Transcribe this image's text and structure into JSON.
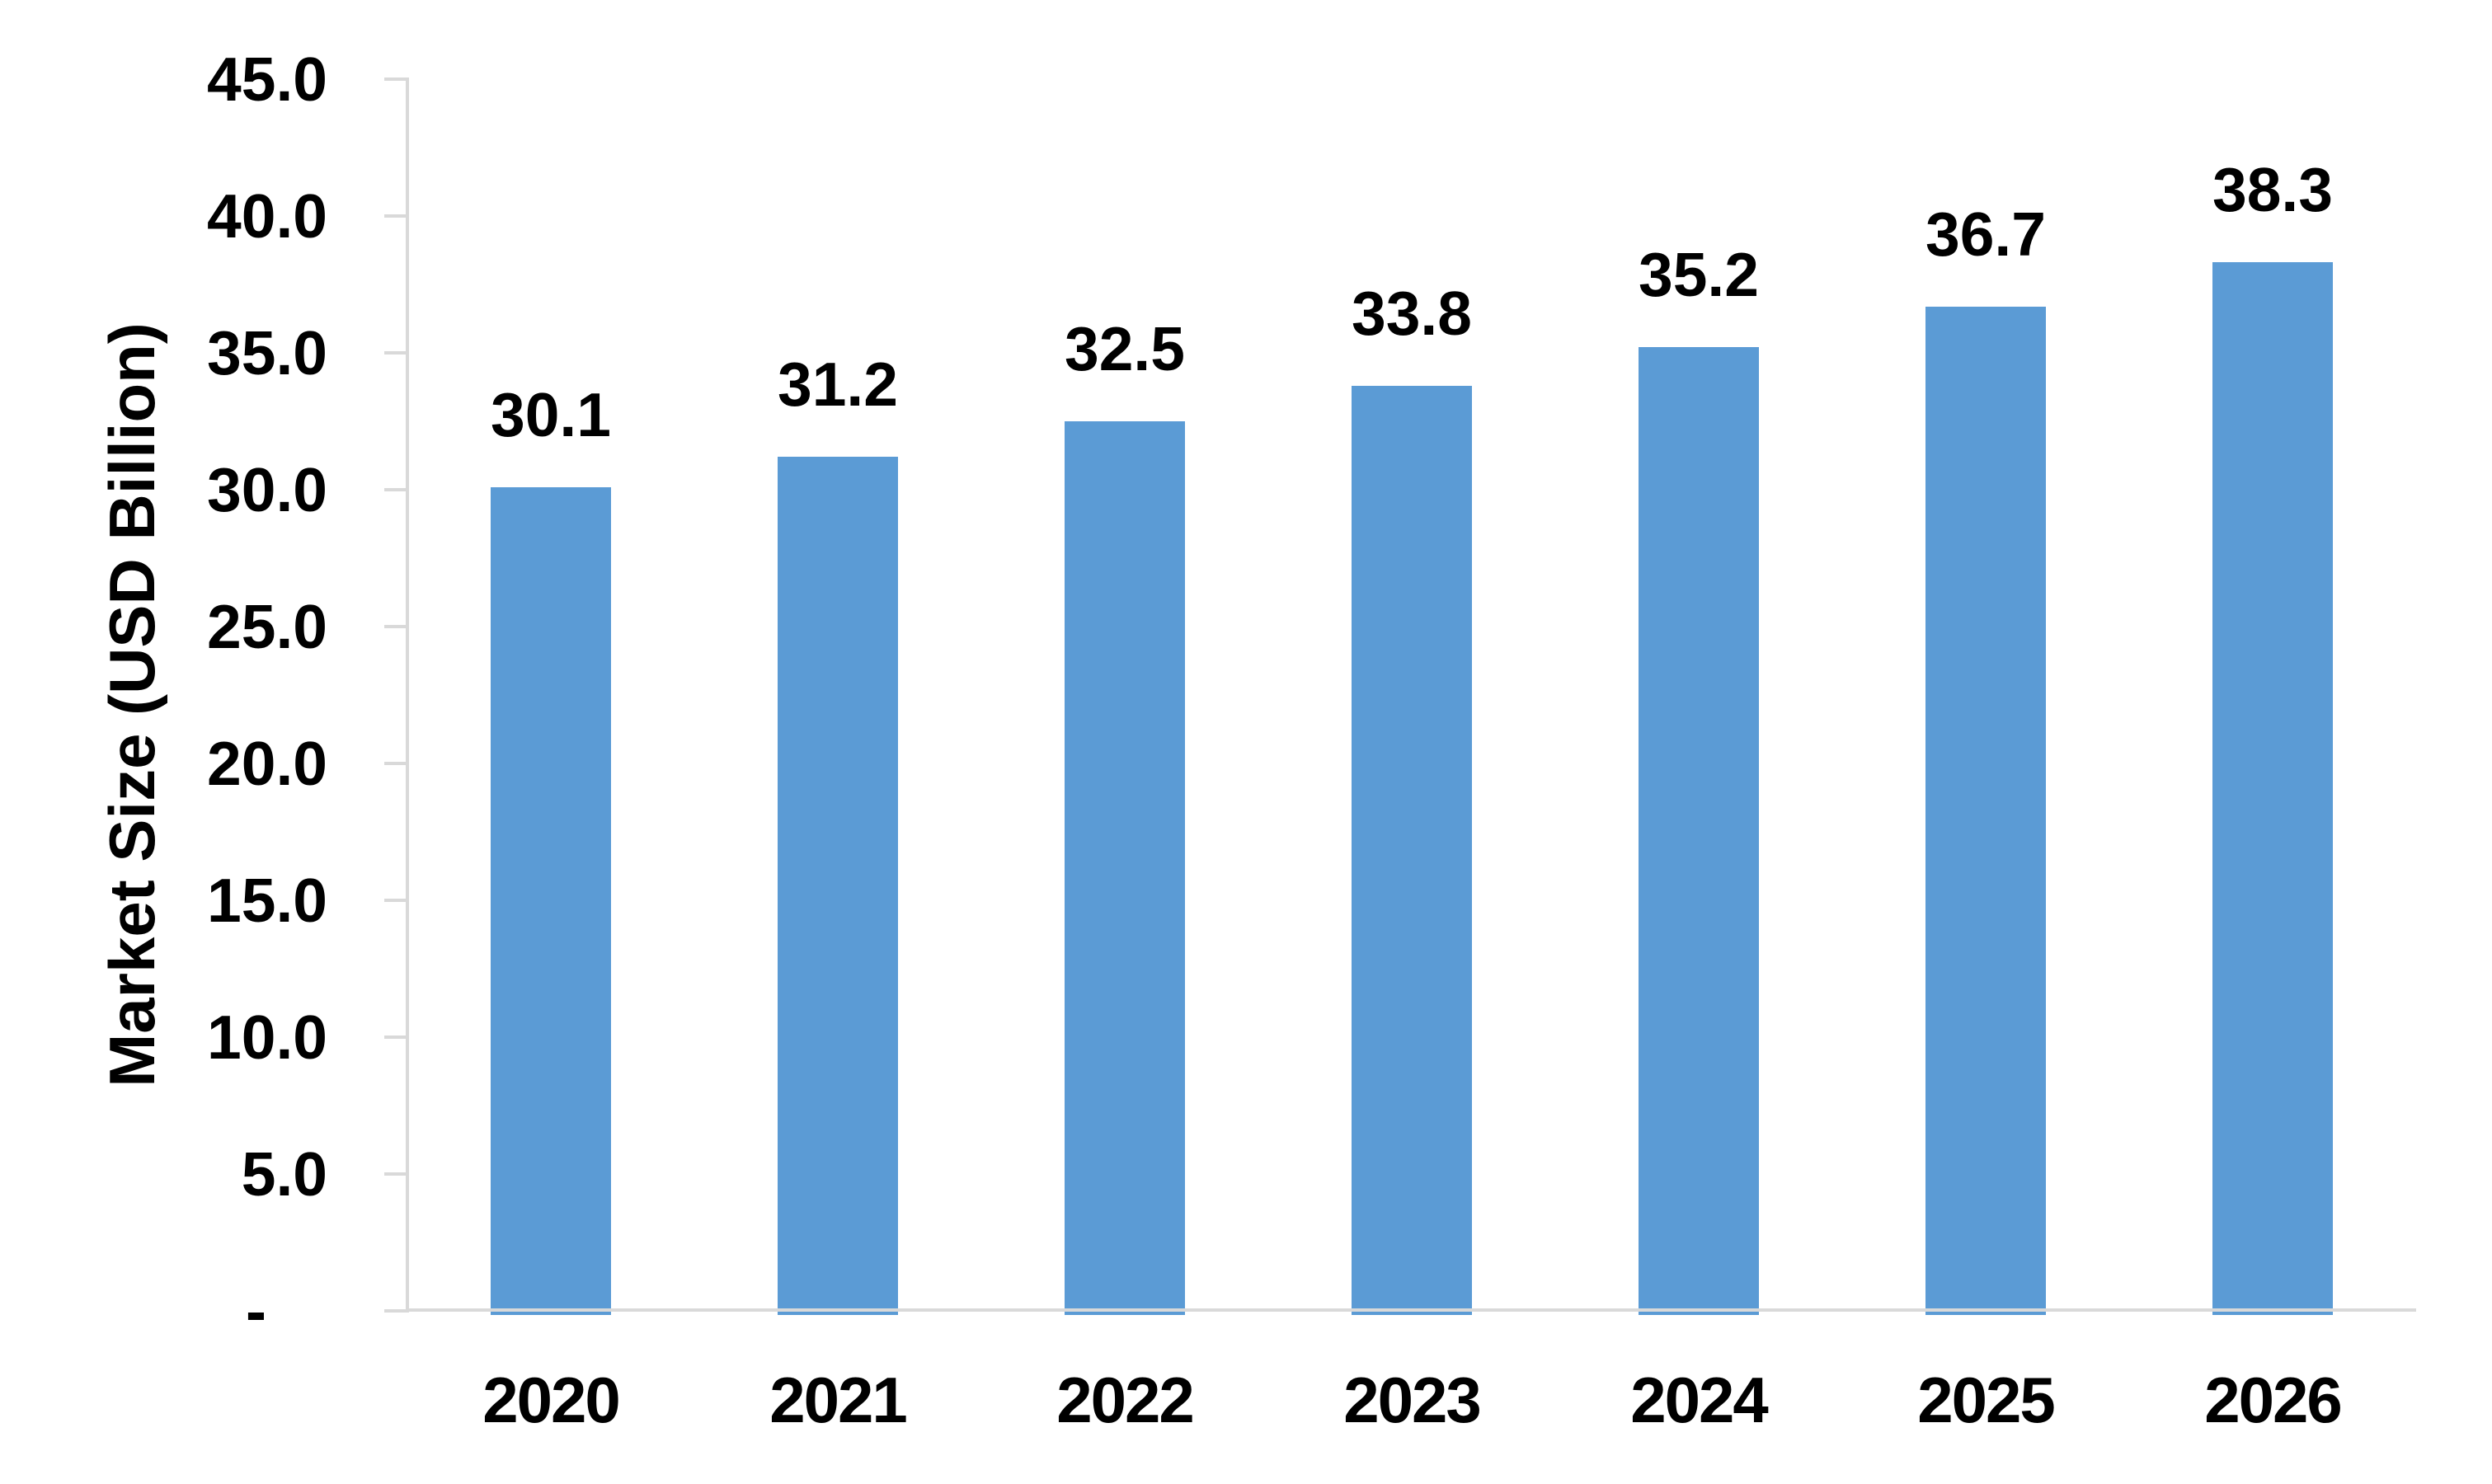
{
  "chart_data": {
    "type": "bar",
    "categories": [
      "2020",
      "2021",
      "2022",
      "2023",
      "2024",
      "2025",
      "2026"
    ],
    "values": [
      30.1,
      31.2,
      32.5,
      33.8,
      35.2,
      36.7,
      38.3
    ],
    "data_labels": [
      "30.1",
      "31.2",
      "32.5",
      "33.8",
      "35.2",
      "36.7",
      "38.3"
    ],
    "ylabel": "Market Size (USD Billion)",
    "xlabel": "",
    "title": "",
    "ylim": [
      0,
      45
    ],
    "ytick_step": 5,
    "ytick_labels": [
      "45.0",
      "40.0",
      "35.0",
      "30.0",
      "25.0",
      "20.0",
      "15.0",
      "10.0",
      "5.0",
      "-"
    ],
    "grid": "off",
    "legend": "none",
    "bar_color": "#5B9BD5",
    "axis_color": "#D9D9D9",
    "text_color": "#000000"
  }
}
